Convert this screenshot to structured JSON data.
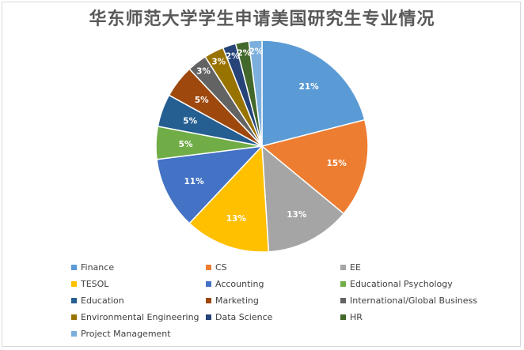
{
  "chart_data": {
    "type": "pie",
    "title": "华东师范大学学生申请美国研究生专业情况",
    "legend_position": "bottom",
    "slices": [
      {
        "name": "Finance",
        "value": 21,
        "label": "21%",
        "color": "#5b9bd5"
      },
      {
        "name": "CS",
        "value": 15,
        "label": "15%",
        "color": "#ed7d31"
      },
      {
        "name": "EE",
        "value": 13,
        "label": "13%",
        "color": "#a5a5a5"
      },
      {
        "name": "TESOL",
        "value": 13,
        "label": "13%",
        "color": "#ffc000"
      },
      {
        "name": "Accounting",
        "value": 11,
        "label": "11%",
        "color": "#4472c4"
      },
      {
        "name": "Educational Psychology",
        "value": 5,
        "label": "5%",
        "color": "#70ad47"
      },
      {
        "name": "Education",
        "value": 5,
        "label": "5%",
        "color": "#255e91"
      },
      {
        "name": "Marketing",
        "value": 5,
        "label": "5%",
        "color": "#9e480e"
      },
      {
        "name": "International/Global Business",
        "value": 3,
        "label": "3%",
        "color": "#636363"
      },
      {
        "name": "Environmental Engineering",
        "value": 3,
        "label": "3%",
        "color": "#997300"
      },
      {
        "name": "Data Science",
        "value": 2,
        "label": "2%",
        "color": "#264478"
      },
      {
        "name": "HR",
        "value": 2,
        "label": "2%",
        "color": "#43682b"
      },
      {
        "name": "Project Management",
        "value": 2,
        "label": "2%",
        "color": "#7cafdd"
      }
    ]
  }
}
